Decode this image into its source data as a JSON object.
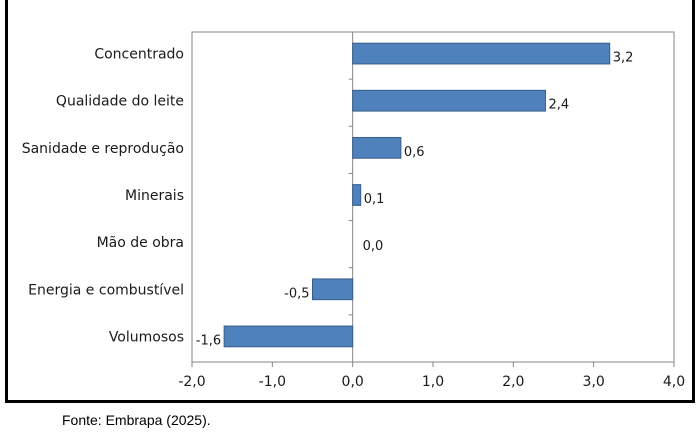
{
  "chart_data": {
    "type": "bar",
    "orientation": "horizontal",
    "categories": [
      "Concentrado",
      "Qualidade do leite",
      "Sanidade e reprodução",
      "Minerais",
      "Mão de obra",
      "Energia e combustível",
      "Volumosos"
    ],
    "values": [
      3.2,
      2.4,
      0.6,
      0.1,
      0.0,
      -0.5,
      -1.6
    ],
    "value_labels": [
      "3,2",
      "2,4",
      "0,6",
      "0,1",
      "0,0",
      "-0,5",
      "-1,6"
    ],
    "xlim": [
      -2.0,
      4.0
    ],
    "x_ticks": [
      -2.0,
      -1.0,
      0.0,
      1.0,
      2.0,
      3.0,
      4.0
    ],
    "x_tick_labels": [
      "-2,0",
      "-1,0",
      "0,0",
      "1,0",
      "2,0",
      "3,0",
      "4,0"
    ],
    "bar_color": "#4f81bd",
    "bar_edge_color": "#385d8a",
    "grid": false,
    "title": "",
    "xlabel": "",
    "ylabel": ""
  },
  "source_note": "Fonte: Embrapa (2025)."
}
